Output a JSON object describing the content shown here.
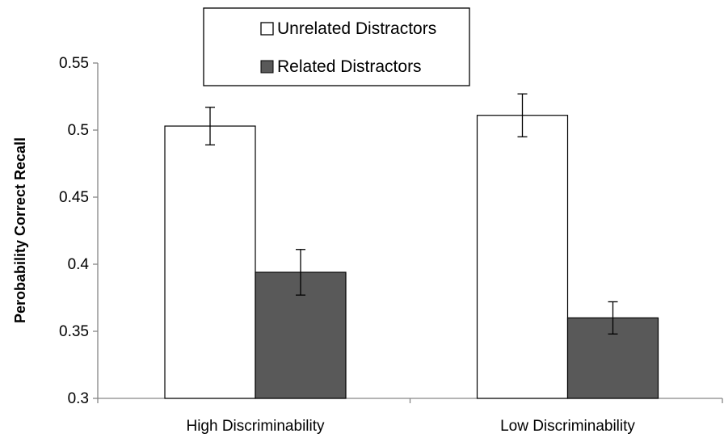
{
  "chart_data": {
    "type": "bar",
    "title": "",
    "xlabel": "",
    "ylabel": "Perobability Correct Recall",
    "categories": [
      "High Discriminability",
      "Low Discriminability"
    ],
    "ylim": [
      0.3,
      0.55
    ],
    "yticks": [
      0.3,
      0.35,
      0.4,
      0.45,
      0.5,
      0.55
    ],
    "ytick_labels": [
      "0.3",
      "0.35",
      "0.4",
      "0.45",
      "0.5",
      "0.55"
    ],
    "grid": false,
    "legend": {
      "position": "top-center",
      "boxed": true
    },
    "series": [
      {
        "name": "Unrelated Distractors",
        "color": "#ffffff",
        "values": [
          0.503,
          0.511
        ],
        "error": [
          0.014,
          0.016
        ]
      },
      {
        "name": "Related Distractors",
        "color": "#595959",
        "values": [
          0.394,
          0.36
        ],
        "error": [
          0.017,
          0.012
        ]
      }
    ]
  }
}
